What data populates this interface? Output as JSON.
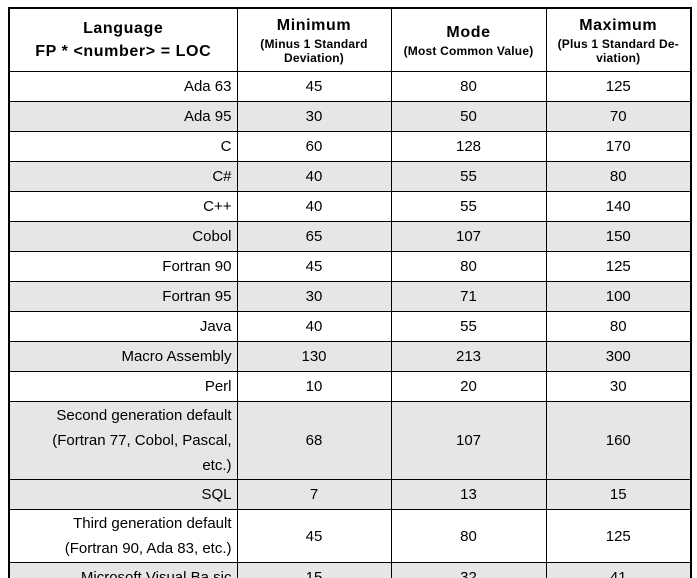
{
  "colors": {
    "border": "#000000",
    "shade": "#e6e6e6",
    "bg": "#ffffff",
    "text": "#000000"
  },
  "table": {
    "columns": [
      {
        "title": "Language\nFP * <number> = LOC",
        "subtitle": ""
      },
      {
        "title": "Minimum",
        "subtitle": "(Minus 1 Standard\nDeviation)"
      },
      {
        "title": "Mode",
        "subtitle": "(Most Common Value)"
      },
      {
        "title": "Maximum",
        "subtitle": "(Plus 1 Standard De-\nviation)"
      }
    ],
    "rows": [
      {
        "language": "Ada 63",
        "min": 45,
        "mode": 80,
        "max": 125,
        "shaded": false
      },
      {
        "language": "Ada 95",
        "min": 30,
        "mode": 50,
        "max": 70,
        "shaded": true
      },
      {
        "language": "C",
        "min": 60,
        "mode": 128,
        "max": 170,
        "shaded": false
      },
      {
        "language": "C#",
        "min": 40,
        "mode": 55,
        "max": 80,
        "shaded": true
      },
      {
        "language": "C++",
        "min": 40,
        "mode": 55,
        "max": 140,
        "shaded": false
      },
      {
        "language": "Cobol",
        "min": 65,
        "mode": 107,
        "max": 150,
        "shaded": true
      },
      {
        "language": "Fortran 90",
        "min": 45,
        "mode": 80,
        "max": 125,
        "shaded": false
      },
      {
        "language": "Fortran 95",
        "min": 30,
        "mode": 71,
        "max": 100,
        "shaded": true
      },
      {
        "language": "Java",
        "min": 40,
        "mode": 55,
        "max": 80,
        "shaded": false
      },
      {
        "language": "Macro Assembly",
        "min": 130,
        "mode": 213,
        "max": 300,
        "shaded": true
      },
      {
        "language": "Perl",
        "min": 10,
        "mode": 20,
        "max": 30,
        "shaded": false
      },
      {
        "language": "Second generation default\n(Fortran 77, Cobol, Pascal,\netc.)",
        "min": 68,
        "mode": 107,
        "max": 160,
        "shaded": true
      },
      {
        "language": "SQL",
        "min": 7,
        "mode": 13,
        "max": 15,
        "shaded": true
      },
      {
        "language": "Third generation default\n(Fortran 90, Ada 83, etc.)",
        "min": 45,
        "mode": 80,
        "max": 125,
        "shaded": false
      },
      {
        "language": "Microsoft Visual Ba sic",
        "min": 15,
        "mode": 32,
        "max": 41,
        "shaded": true
      }
    ]
  }
}
